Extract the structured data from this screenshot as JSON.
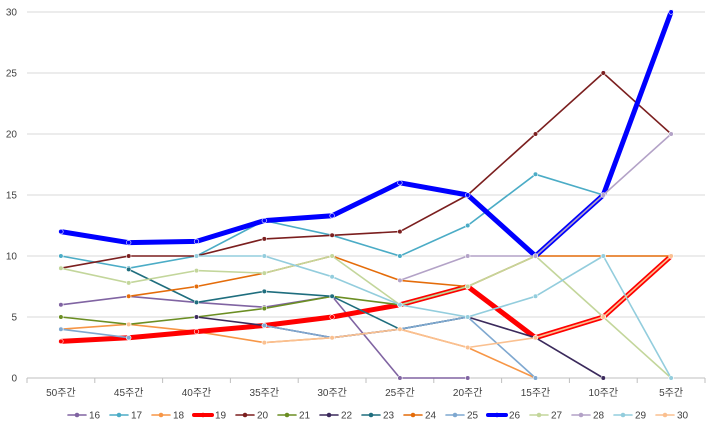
{
  "chart_data": {
    "type": "line",
    "categories": [
      "50주간",
      "45주간",
      "40주간",
      "35주간",
      "30주간",
      "25주간",
      "20주간",
      "15주간",
      "10주간",
      "5주간"
    ],
    "ylim": [
      0,
      30
    ],
    "yticks": [
      0,
      5,
      10,
      15,
      20,
      25,
      30
    ],
    "grid": true,
    "legend_position": "bottom",
    "series": [
      {
        "name": "16",
        "color": "#8064A2",
        "values": [
          6,
          6.7,
          6.2,
          5.8,
          6.7,
          0,
          0,
          null,
          null,
          null
        ]
      },
      {
        "name": "17",
        "color": "#4BACC6",
        "values": [
          10,
          9,
          10,
          12.9,
          11.7,
          10,
          12.5,
          16.7,
          15,
          null
        ]
      },
      {
        "name": "18",
        "color": "#F79646",
        "values": [
          4,
          4.4,
          3.8,
          2.9,
          3.3,
          4,
          2.5,
          0,
          null,
          null
        ]
      },
      {
        "name": "19",
        "color": "#FF0000",
        "values": [
          3,
          3.3,
          3.8,
          4.3,
          5,
          6,
          7.5,
          3.3,
          5,
          10
        ]
      },
      {
        "name": "20",
        "color": "#7B1F1F",
        "values": [
          9,
          10,
          10,
          11.4,
          11.7,
          12,
          15,
          20,
          25,
          20
        ]
      },
      {
        "name": "21",
        "color": "#6B8E23",
        "values": [
          5,
          4.4,
          5,
          5.7,
          6.7,
          6,
          7.5,
          null,
          null,
          null
        ]
      },
      {
        "name": "22",
        "color": "#3B2A5C",
        "values": [
          null,
          null,
          5,
          4.3,
          3.3,
          4,
          5,
          3.3,
          0,
          null
        ]
      },
      {
        "name": "23",
        "color": "#1F6E7E",
        "values": [
          null,
          8.9,
          6.2,
          7.1,
          6.7,
          4,
          5,
          null,
          null,
          null
        ]
      },
      {
        "name": "24",
        "color": "#E46C0A",
        "values": [
          null,
          6.7,
          7.5,
          8.6,
          10,
          8,
          7.5,
          10,
          10,
          10
        ]
      },
      {
        "name": "25",
        "color": "#7FA8D0",
        "values": [
          4,
          3.3,
          null,
          4.3,
          3.3,
          4,
          5,
          0,
          null,
          null
        ]
      },
      {
        "name": "26",
        "color": "#0000FF",
        "values": [
          12,
          11.1,
          11.2,
          12.9,
          13.3,
          16,
          15,
          10,
          15,
          30
        ]
      },
      {
        "name": "27",
        "color": "#C3D69B",
        "values": [
          9,
          7.8,
          8.8,
          8.6,
          10,
          6,
          7.5,
          10,
          5,
          0
        ]
      },
      {
        "name": "28",
        "color": "#B3A2C7",
        "values": [
          null,
          null,
          null,
          null,
          null,
          8,
          10,
          10,
          15,
          20
        ]
      },
      {
        "name": "29",
        "color": "#93CDDD",
        "values": [
          null,
          null,
          10,
          10,
          8.3,
          6,
          5,
          6.7,
          10,
          0
        ]
      },
      {
        "name": "30",
        "color": "#FAC090",
        "values": [
          null,
          4.4,
          null,
          2.9,
          3.3,
          4,
          2.5,
          3.3,
          5,
          10
        ]
      }
    ]
  }
}
